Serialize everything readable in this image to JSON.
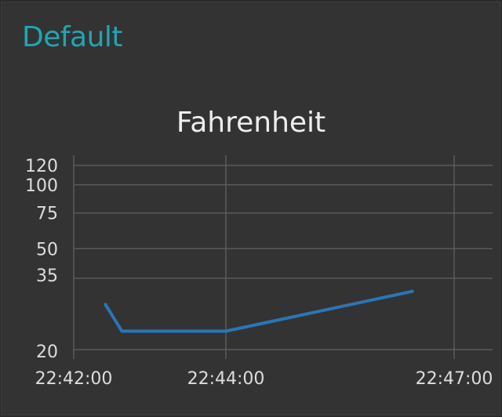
{
  "group": {
    "title": "Default"
  },
  "colors": {
    "accent": "#1fa6b3",
    "text": "#eeeeee",
    "tick_text": "#dddddd",
    "grid": "#5a5a5a",
    "series": "#2a75b8"
  },
  "chart_data": {
    "type": "line",
    "title": "Fahrenheit",
    "xlabel": "",
    "ylabel": "",
    "grid": true,
    "legend": "none",
    "y_ticks": [
      120,
      100,
      75,
      50,
      35,
      20
    ],
    "x_ticks": [
      "22:42:00",
      "22:44:00",
      "22:47:00"
    ],
    "ylim": [
      20,
      120
    ],
    "xlim": [
      "22:42:00",
      "22:47:00"
    ],
    "series": [
      {
        "points": [
          {
            "x": "22:42:25",
            "y": 26
          },
          {
            "x": "22:42:38",
            "y": 21
          },
          {
            "x": "22:44:00",
            "y": 21
          },
          {
            "x": "22:46:27",
            "y": 30
          }
        ]
      }
    ]
  }
}
